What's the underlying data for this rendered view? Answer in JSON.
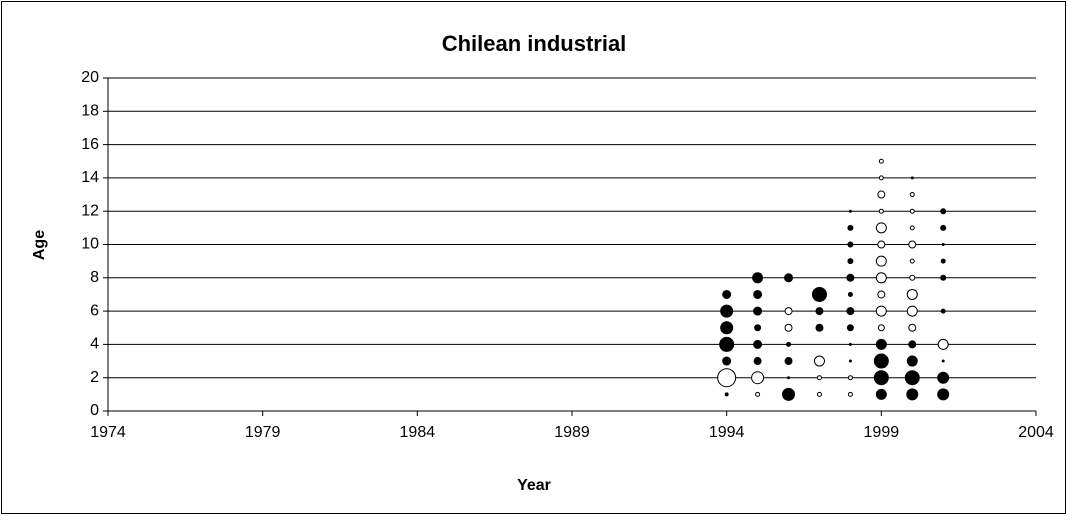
{
  "chart_data": {
    "type": "bubble",
    "title": "Chilean industrial",
    "x_label": "Year",
    "y_label": "Age",
    "xlim": [
      1974,
      2004
    ],
    "xticks": [
      1974,
      1979,
      1984,
      1989,
      1994,
      1999,
      2004
    ],
    "ylim": [
      0,
      20
    ],
    "yticks": [
      0,
      2,
      4,
      6,
      8,
      10,
      12,
      14,
      16,
      18,
      20
    ],
    "grid": true,
    "series": [
      {
        "color": "#000000",
        "x": [
          1994,
          1994,
          1994,
          1994,
          1994,
          1994,
          1995,
          1995,
          1995,
          1995,
          1995,
          1995,
          1996,
          1996,
          1996,
          1996,
          1996,
          1997,
          1997,
          1997,
          1998,
          1998,
          1998,
          1998,
          1998,
          1998,
          1998,
          1998,
          1998,
          1998,
          1999,
          1999,
          1999,
          1999,
          2000,
          2000,
          2000,
          2000,
          2000,
          2001,
          2001,
          2001,
          2001,
          2001,
          2001,
          2001,
          2001,
          2001
        ],
        "y": [
          1,
          3,
          4,
          5,
          6,
          7,
          3,
          4,
          5,
          6,
          7,
          8,
          1,
          2,
          3,
          4,
          8,
          5,
          6,
          7,
          3,
          4,
          5,
          6,
          7,
          8,
          9,
          10,
          11,
          12,
          1,
          2,
          3,
          4,
          1,
          2,
          3,
          4,
          14,
          1,
          2,
          3,
          6,
          8,
          9,
          10,
          11,
          12
        ],
        "sizes": [
          1.5,
          4,
          7,
          6,
          6,
          4,
          3.5,
          4,
          3,
          4,
          4,
          5,
          6,
          1,
          3.5,
          2,
          4,
          3.5,
          3.5,
          7,
          1,
          1,
          3,
          3.5,
          2,
          3.5,
          2.5,
          2.5,
          2.5,
          1,
          5,
          7,
          7,
          5,
          5.5,
          7,
          5,
          3.5,
          1,
          5.5,
          5.5,
          1,
          2,
          2.5,
          2,
          1,
          2.5,
          2.5
        ]
      },
      {
        "color": "#ffffff",
        "x": [
          1994,
          1995,
          1995,
          1996,
          1996,
          1997,
          1997,
          1997,
          1998,
          1998,
          1999,
          1999,
          1999,
          1999,
          1999,
          1999,
          1999,
          1999,
          1999,
          1999,
          1999,
          2000,
          2000,
          2000,
          2000,
          2000,
          2000,
          2000,
          2000,
          2000,
          2001
        ],
        "y": [
          2,
          1,
          2,
          5,
          6,
          1,
          2,
          3,
          1,
          2,
          5,
          6,
          7,
          8,
          9,
          10,
          11,
          12,
          13,
          14,
          15,
          5,
          6,
          7,
          8,
          9,
          10,
          11,
          12,
          13,
          4
        ],
        "sizes": [
          9,
          2,
          6,
          3.5,
          3.5,
          2,
          2,
          5,
          2,
          2,
          3,
          5,
          3.5,
          5,
          5,
          3.5,
          5,
          2,
          3.5,
          2,
          2,
          3.5,
          5,
          5,
          2.5,
          2,
          3.5,
          2,
          2,
          2,
          5
        ]
      }
    ]
  }
}
